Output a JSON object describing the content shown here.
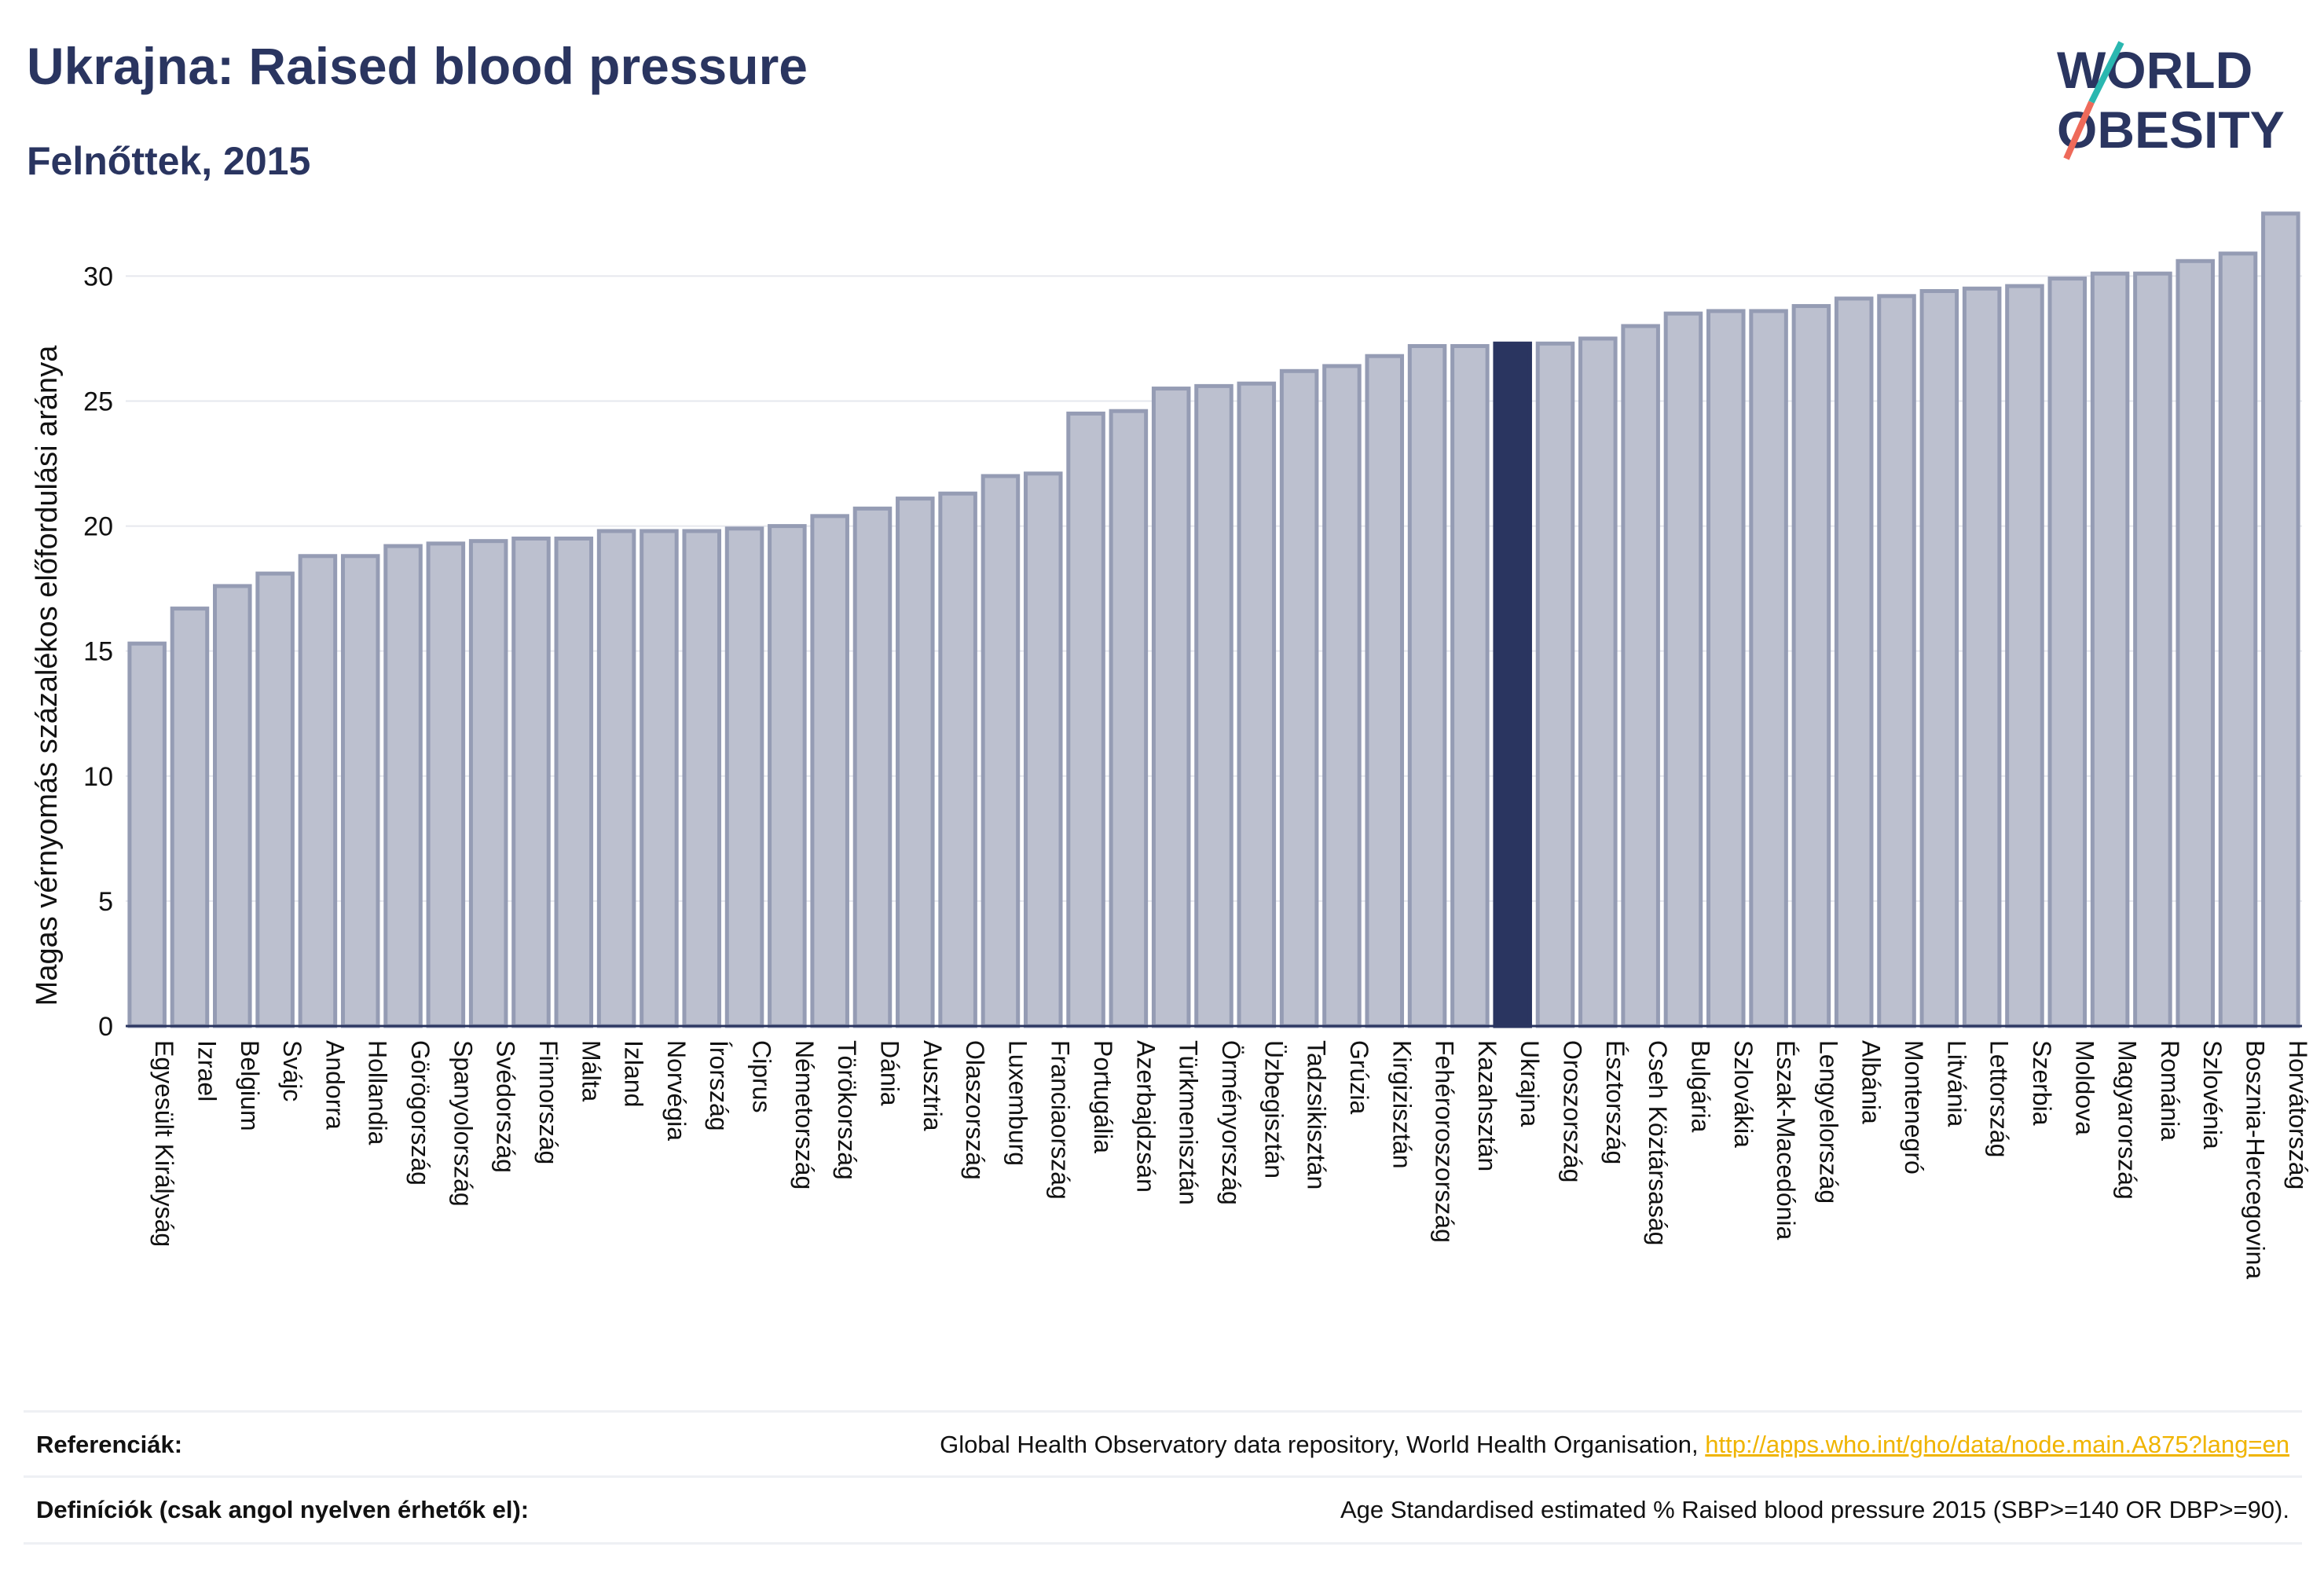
{
  "header": {
    "title": "Ukrajna: Raised blood pressure",
    "subtitle": "Felnőttek, 2015"
  },
  "logo": {
    "line1": "WORLD",
    "line2": "OBESITY",
    "colors": {
      "text": "#2a3560",
      "slash_teal": "#2ab7b0",
      "slash_coral": "#ee6a5a"
    }
  },
  "footer": {
    "references_label": "Referenciák:",
    "references_text": "Global Health Observatory data repository, World Health Organisation,",
    "references_link": "http://apps.who.int/gho/data/node.main.A875?lang=en",
    "definitions_label": "Definíciók (csak angol nyelven érhetők el):",
    "definitions_text": "Age Standardised estimated % Raised blood pressure 2015 (SBP>=140 OR DBP>=90)."
  },
  "chart_data": {
    "type": "bar",
    "ylabel": "Magas vérnyomás százalékos előfordulási aránya",
    "xlabel": "",
    "ylim": [
      0,
      33.5
    ],
    "yticks": [
      0,
      5,
      10,
      15,
      20,
      25,
      30
    ],
    "grid": true,
    "highlight": "Ukrajna",
    "colors": {
      "bar": "#bcc0cf",
      "bar_edge": "#959cb4",
      "highlight": "#2a3560",
      "grid": "#e6e8ee",
      "axis": "#2a3560"
    },
    "categories": [
      "Egyesült Királyság",
      "Izrael",
      "Belgium",
      "Svájc",
      "Andorra",
      "Hollandia",
      "Görögország",
      "Spanyolország",
      "Svédország",
      "Finnország",
      "Málta",
      "Izland",
      "Norvégia",
      "Írország",
      "Ciprus",
      "Németország",
      "Törökország",
      "Dánia",
      "Ausztria",
      "Olaszország",
      "Luxemburg",
      "Franciaország",
      "Portugália",
      "Azerbajdzsán",
      "Türkmenisztán",
      "Örményország",
      "Üzbegisztán",
      "Tadzsikisztán",
      "Grúzia",
      "Kirgizisztán",
      "Fehéroroszország",
      "Kazahsztán",
      "Ukrajna",
      "Oroszország",
      "Észtország",
      "Cseh Köztársaság",
      "Bulgária",
      "Szlovákia",
      "Észak-Macedónia",
      "Lengyelország",
      "Albánia",
      "Montenegró",
      "Litvánia",
      "Lettország",
      "Szerbia",
      "Moldova",
      "Magyarország",
      "Románia",
      "Szlovénia",
      "Bosznia-Hercegovina",
      "Horvátország"
    ],
    "values": [
      15.3,
      16.7,
      17.6,
      18.1,
      18.8,
      18.8,
      19.2,
      19.3,
      19.4,
      19.5,
      19.5,
      19.8,
      19.8,
      19.8,
      19.9,
      20.0,
      20.4,
      20.7,
      21.1,
      21.3,
      22.0,
      22.1,
      24.5,
      24.6,
      25.5,
      25.6,
      25.7,
      26.2,
      26.4,
      26.8,
      27.2,
      27.2,
      27.3,
      27.3,
      27.5,
      28.0,
      28.5,
      28.6,
      28.6,
      28.8,
      29.1,
      29.2,
      29.4,
      29.5,
      29.6,
      29.9,
      30.1,
      30.1,
      30.6,
      30.9,
      32.5
    ]
  }
}
